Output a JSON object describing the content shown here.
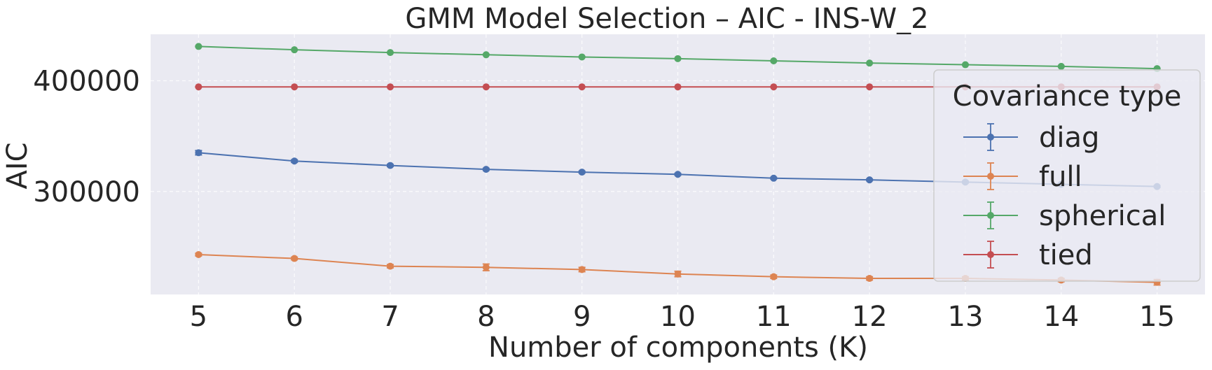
{
  "chart_data": {
    "type": "line",
    "title": "GMM Model Selection – AIC - INS-W_2",
    "xlabel": "Number of components (K)",
    "ylabel": "AIC",
    "x": [
      5,
      6,
      7,
      8,
      9,
      10,
      11,
      12,
      13,
      14,
      15
    ],
    "xticks": [
      "5",
      "6",
      "7",
      "8",
      "9",
      "10",
      "11",
      "12",
      "13",
      "14",
      "15"
    ],
    "yticks": [
      300000,
      400000
    ],
    "ytick_labels": [
      "300000",
      "400000"
    ],
    "xlim": [
      4.5,
      15.5
    ],
    "ylim": [
      207000,
      442000
    ],
    "grid": true,
    "legend": {
      "title": "Covariance type",
      "position": "right"
    },
    "series": [
      {
        "name": "diag",
        "color": "#4c72b0",
        "values": [
          335000,
          327500,
          323500,
          320000,
          317500,
          315500,
          312000,
          310500,
          308500,
          306500,
          304500
        ],
        "errors": [
          2000,
          1200,
          1000,
          1000,
          900,
          900,
          800,
          800,
          800,
          800,
          800
        ]
      },
      {
        "name": "full",
        "color": "#dd8452",
        "values": [
          243000,
          239500,
          232500,
          231500,
          229500,
          225500,
          223000,
          221500,
          221500,
          220000,
          218000
        ],
        "errors": [
          1200,
          1200,
          1500,
          3000,
          2000,
          2500,
          1500,
          1500,
          1500,
          1500,
          2500
        ]
      },
      {
        "name": "spherical",
        "color": "#55a868",
        "values": [
          431000,
          428000,
          425500,
          423500,
          421500,
          420000,
          418000,
          416000,
          414500,
          413000,
          411000
        ],
        "errors": [
          300,
          300,
          300,
          300,
          300,
          300,
          300,
          300,
          300,
          300,
          300
        ]
      },
      {
        "name": "tied",
        "color": "#c44e52",
        "values": [
          394500,
          394500,
          394500,
          394500,
          394500,
          394500,
          394500,
          394500,
          394500,
          394500,
          394500
        ],
        "errors": [
          200,
          200,
          200,
          200,
          200,
          200,
          200,
          200,
          200,
          200,
          200
        ]
      }
    ]
  }
}
